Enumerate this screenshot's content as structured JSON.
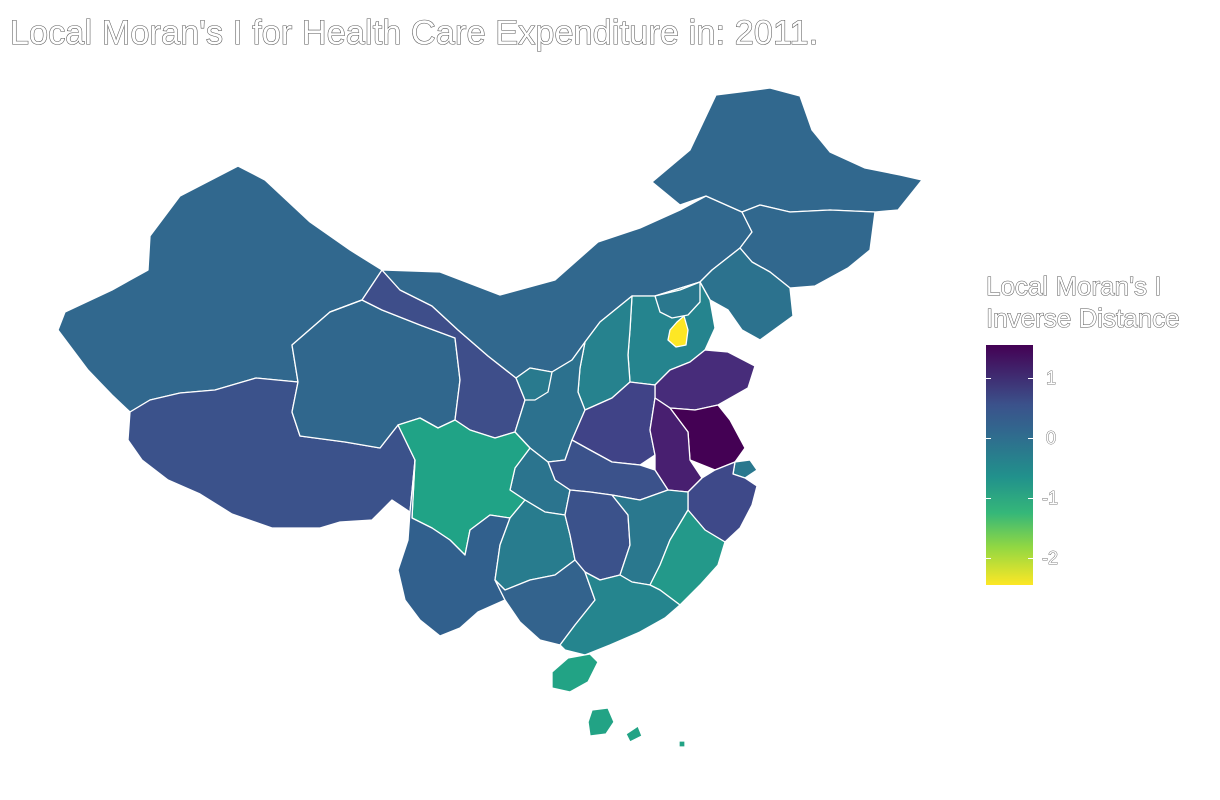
{
  "title": "Local Moran's I for Health Care Expenditure in: 2011.",
  "legend": {
    "title_line1": "Local Moran's I",
    "title_line2": "Inverse Distance",
    "ticks": [
      "1",
      "0",
      "-1",
      "-2"
    ],
    "range": [
      -2.45,
      1.55
    ],
    "palette": [
      "#440154",
      "#3b528b",
      "#21918c",
      "#5ec962",
      "#fde725"
    ]
  },
  "regions": [
    {
      "name": "Xinjiang",
      "value": 0.05,
      "color": "#31688e"
    },
    {
      "name": "Tibet",
      "value": 0.55,
      "color": "#3b528b"
    },
    {
      "name": "Qinghai",
      "value": 0.1,
      "color": "#30678d"
    },
    {
      "name": "Gansu",
      "value": 0.5,
      "color": "#3e4e8a"
    },
    {
      "name": "Inner Mongolia",
      "value": 0.05,
      "color": "#31688e"
    },
    {
      "name": "Heilongjiang",
      "value": 0.05,
      "color": "#31688e"
    },
    {
      "name": "Jilin",
      "value": 0.05,
      "color": "#31688e"
    },
    {
      "name": "Liaoning",
      "value": -0.1,
      "color": "#2c728e"
    },
    {
      "name": "Hebei",
      "value": -0.5,
      "color": "#25848e"
    },
    {
      "name": "Beijing",
      "value": -0.4,
      "color": "#2a788e"
    },
    {
      "name": "Tianjin",
      "value": -2.45,
      "color": "#fde725"
    },
    {
      "name": "Shanxi",
      "value": -0.45,
      "color": "#26828e"
    },
    {
      "name": "Shaanxi",
      "value": -0.1,
      "color": "#2c718e"
    },
    {
      "name": "Ningxia",
      "value": -0.3,
      "color": "#297a8e"
    },
    {
      "name": "Shandong",
      "value": 1.15,
      "color": "#472c7a"
    },
    {
      "name": "Henan",
      "value": 0.65,
      "color": "#404387"
    },
    {
      "name": "Jiangsu",
      "value": 1.5,
      "color": "#440154"
    },
    {
      "name": "Anhui",
      "value": 1.3,
      "color": "#481f70"
    },
    {
      "name": "Shanghai",
      "value": -0.4,
      "color": "#2a788e"
    },
    {
      "name": "Zhejiang",
      "value": 0.6,
      "color": "#3e4989"
    },
    {
      "name": "Hubei",
      "value": 0.4,
      "color": "#3b528b"
    },
    {
      "name": "Chongqing",
      "value": -0.3,
      "color": "#2b748e"
    },
    {
      "name": "Sichuan",
      "value": -1.0,
      "color": "#20a386"
    },
    {
      "name": "Yunnan",
      "value": 0.15,
      "color": "#31608d"
    },
    {
      "name": "Guizhou",
      "value": -0.35,
      "color": "#287c8e"
    },
    {
      "name": "Hunan",
      "value": 0.45,
      "color": "#3b528b"
    },
    {
      "name": "Jiangxi",
      "value": -0.3,
      "color": "#2a788e"
    },
    {
      "name": "Fujian",
      "value": -0.7,
      "color": "#23998a"
    },
    {
      "name": "Guangxi",
      "value": 0.1,
      "color": "#33638d"
    },
    {
      "name": "Guangdong",
      "value": -0.55,
      "color": "#25858e"
    },
    {
      "name": "Hainan",
      "value": -0.95,
      "color": "#22a385"
    },
    {
      "name": "Taiwan",
      "value": -0.95,
      "color": "#22a385"
    }
  ]
}
